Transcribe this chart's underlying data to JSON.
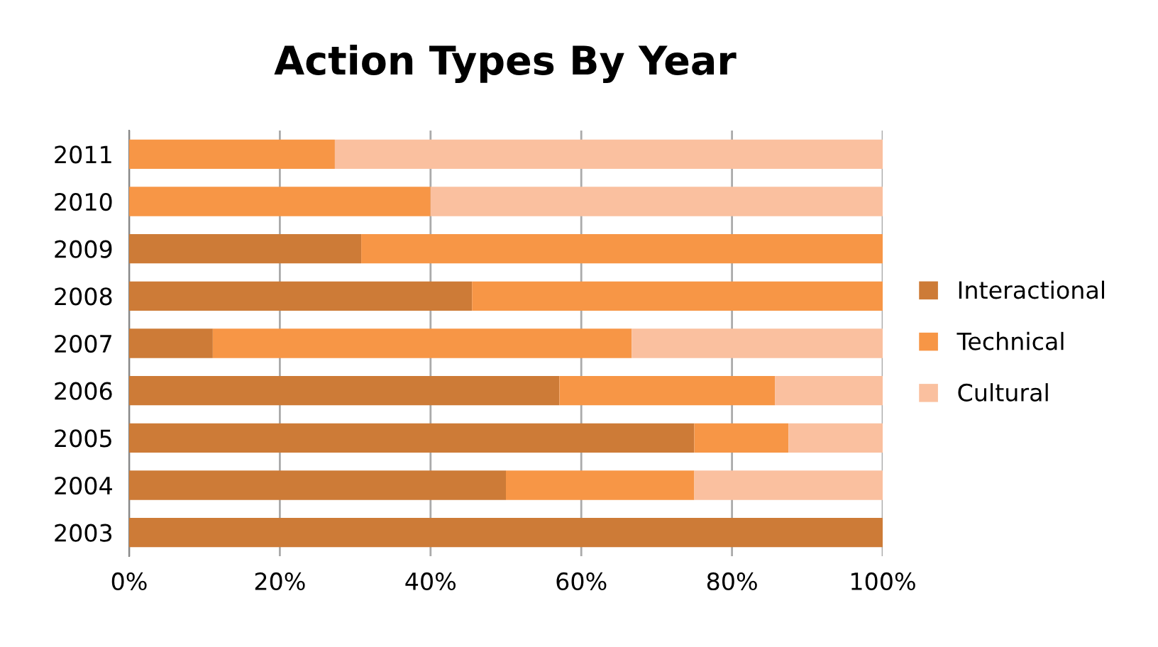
{
  "chart_data": {
    "type": "bar",
    "title": "Action Types By Year",
    "orientation": "horizontal",
    "stacked": true,
    "categories": [
      "2011",
      "2010",
      "2009",
      "2008",
      "2007",
      "2006",
      "2005",
      "2004",
      "2003"
    ],
    "series": [
      {
        "name": "Interactional",
        "color": "#cd7b37",
        "values": [
          0,
          0,
          30.8,
          45.5,
          11.1,
          57.1,
          75,
          50,
          100
        ]
      },
      {
        "name": "Technical",
        "color": "#f79646",
        "values": [
          27.3,
          40,
          69.2,
          54.5,
          55.6,
          28.6,
          12.5,
          25,
          0
        ]
      },
      {
        "name": "Cultural",
        "color": "#fac09f",
        "values": [
          72.7,
          60,
          0,
          0,
          33.3,
          14.3,
          12.5,
          25,
          0
        ]
      }
    ],
    "xlim": [
      0,
      100
    ],
    "xticks": [
      {
        "value": 0,
        "label": "0%"
      },
      {
        "value": 20,
        "label": "20%"
      },
      {
        "value": 40,
        "label": "40%"
      },
      {
        "value": 60,
        "label": "60%"
      },
      {
        "value": 80,
        "label": "80%"
      },
      {
        "value": 100,
        "label": "100%"
      }
    ],
    "grid": "x",
    "legend": "right"
  }
}
